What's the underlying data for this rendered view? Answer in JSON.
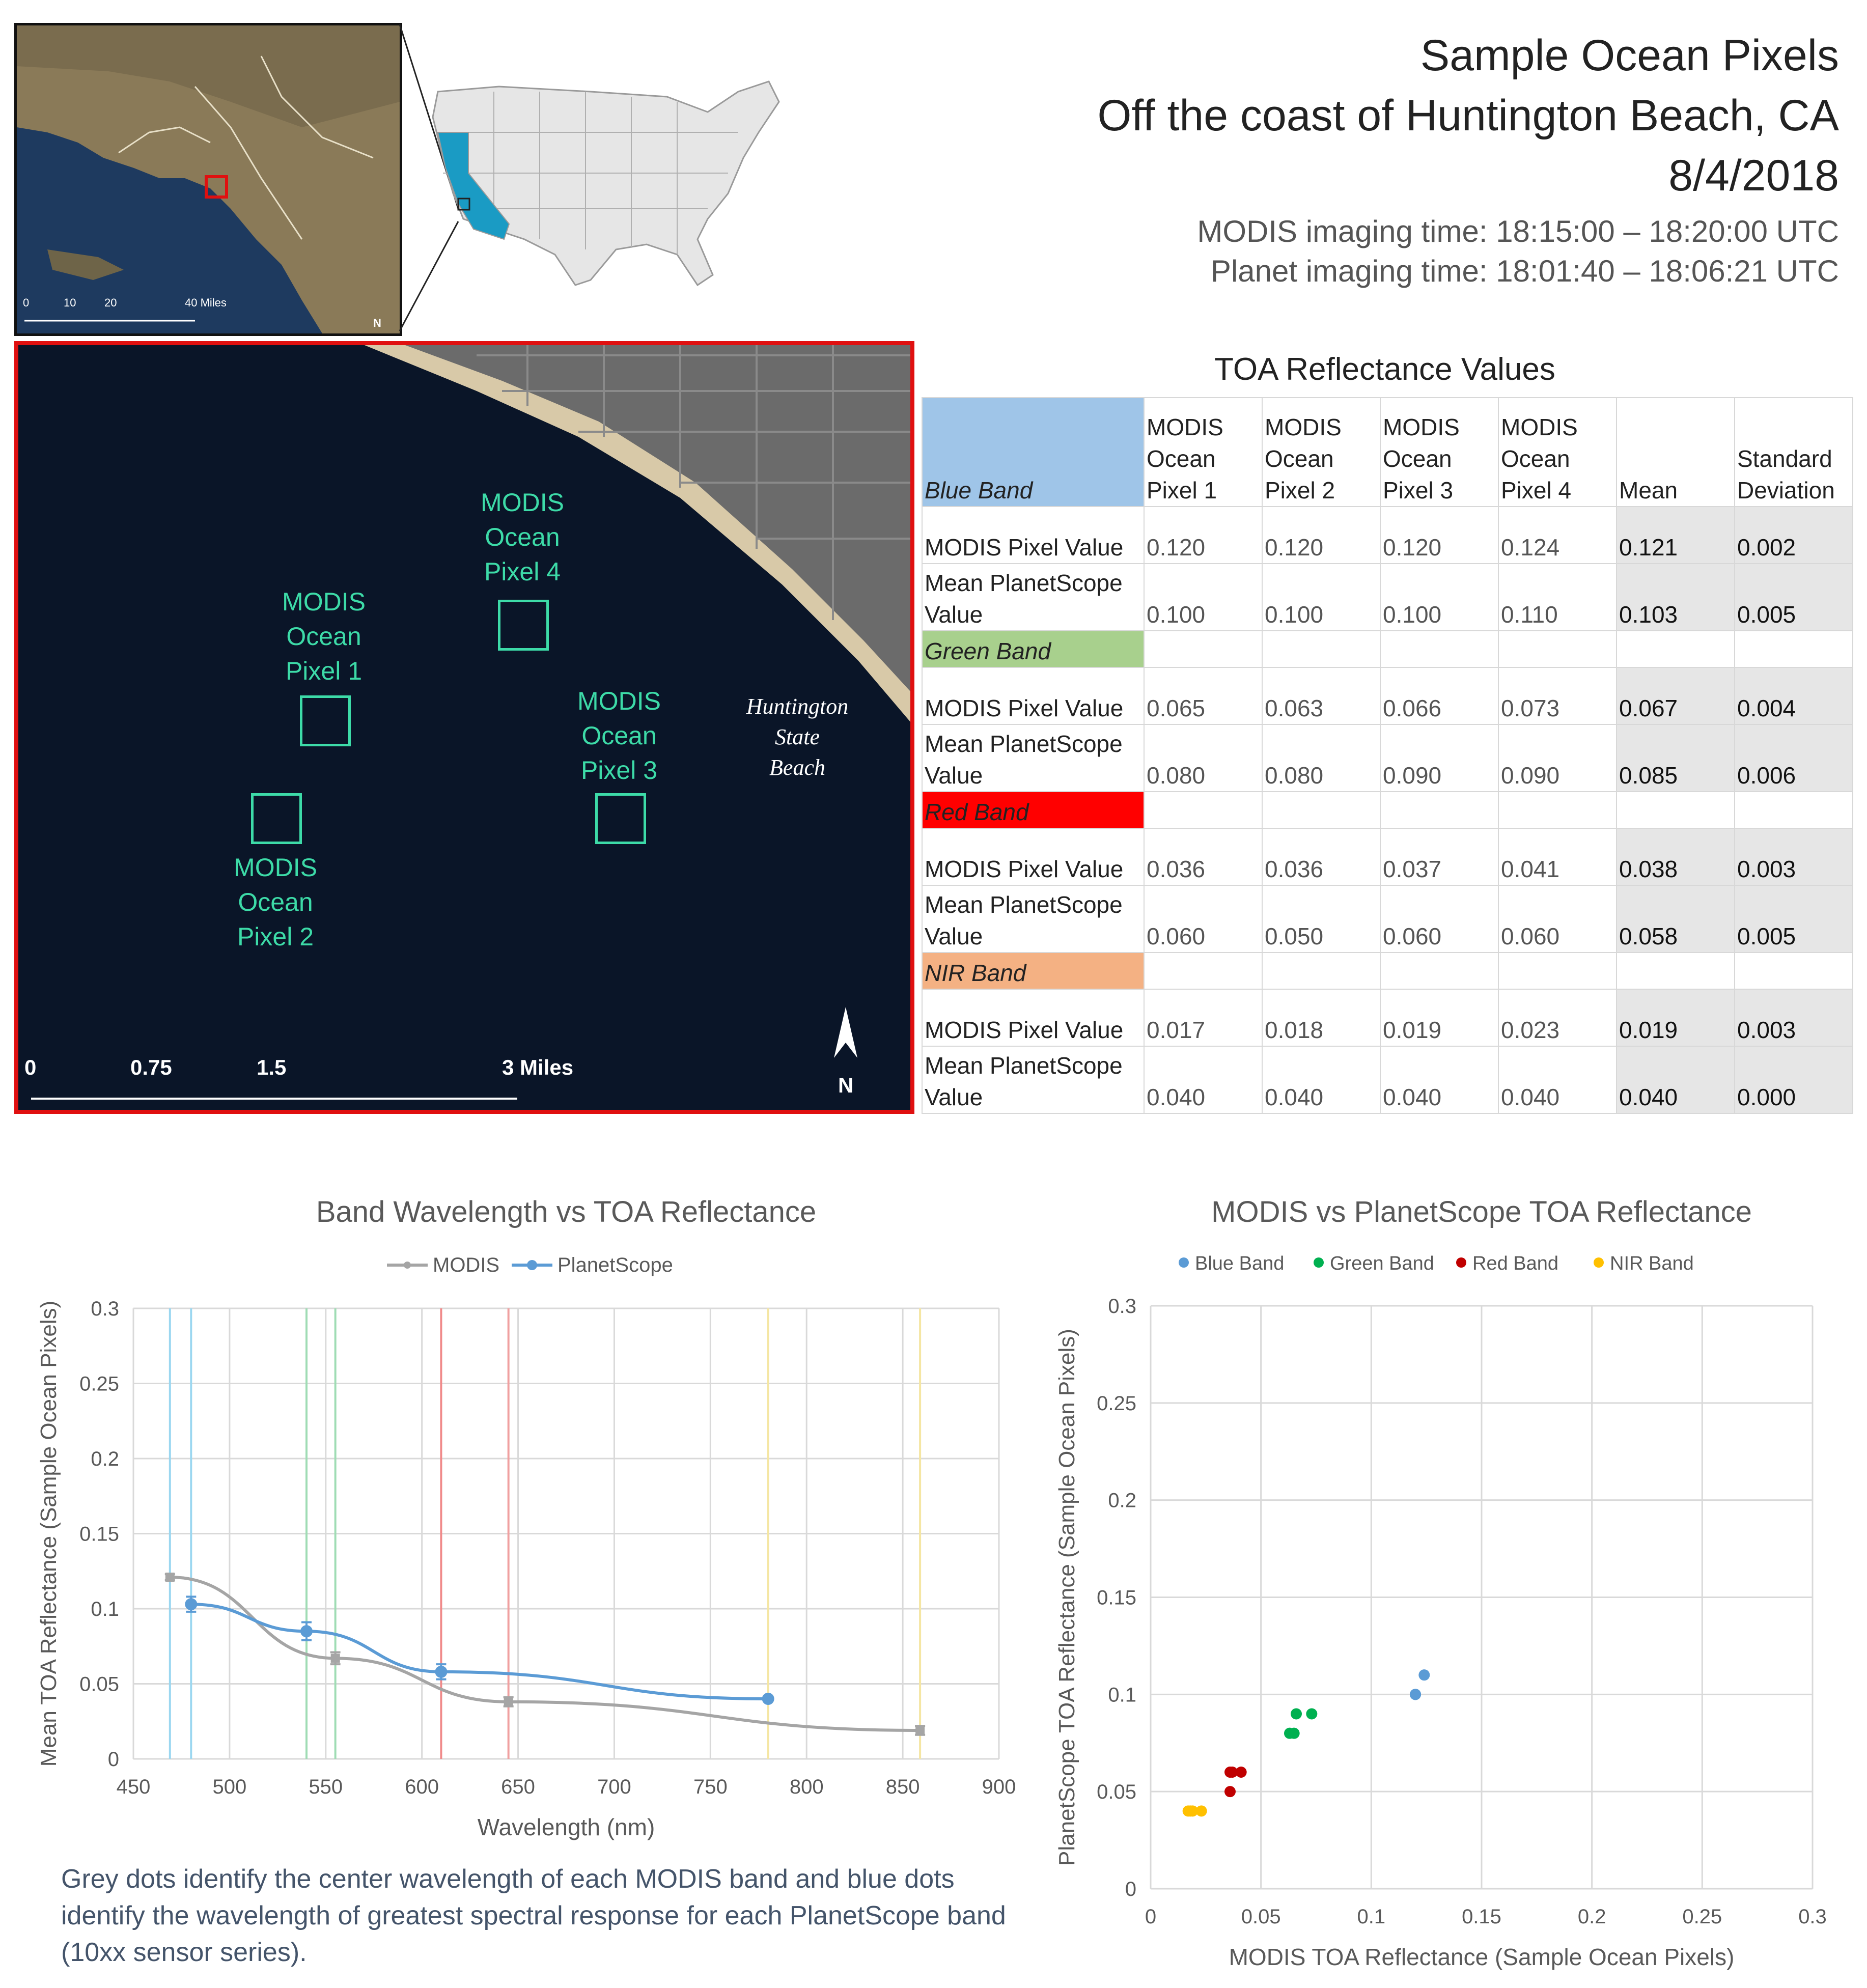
{
  "header": {
    "title_line1": "Sample Ocean Pixels",
    "title_line2": "Off the coast of Huntington Beach, CA",
    "date": "8/4/2018",
    "modis_time": "MODIS imaging time: 18:15:00 – 18:20:00 UTC",
    "planet_time": "Planet imaging time: 18:01:40 – 18:06:21 UTC"
  },
  "inset_map": {
    "scale_labels": [
      "0",
      "10",
      "20",
      "40 Miles"
    ],
    "north": "N",
    "colors": {
      "land": "#8a7a58",
      "ocean": "#1e3a5f",
      "highlight": "#e01010"
    }
  },
  "us_map": {
    "colors": {
      "states": "#e6e6e6",
      "california": "#1a9bc4",
      "border": "#9a9a9a"
    }
  },
  "main_map": {
    "pixels": [
      {
        "label": [
          "MODIS",
          "Ocean",
          "Pixel 1"
        ]
      },
      {
        "label": [
          "MODIS",
          "Ocean",
          "Pixel 2"
        ]
      },
      {
        "label": [
          "MODIS",
          "Ocean",
          "Pixel 3"
        ]
      },
      {
        "label": [
          "MODIS",
          "Ocean",
          "Pixel 4"
        ]
      }
    ],
    "beach_label": [
      "Huntington",
      "State",
      "Beach"
    ],
    "scale_labels": [
      "0",
      "0.75",
      "1.5",
      "3 Miles"
    ],
    "north": "N",
    "colors": {
      "ocean": "#0a1528",
      "box": "#3ddba8",
      "sand": "#d8c9a8",
      "city": "#6b6b6b"
    }
  },
  "table": {
    "title": "TOA Reflectance Values",
    "headers": [
      "MODIS Ocean Pixel 1",
      "MODIS Ocean Pixel 2",
      "MODIS Ocean Pixel 3",
      "MODIS Ocean Pixel 4",
      "Mean",
      "Standard Deviation"
    ],
    "bands": [
      {
        "name": "Blue Band",
        "color": "#9fc5e8",
        "rows": [
          {
            "label": "MODIS Pixel Value",
            "values": [
              "0.120",
              "0.120",
              "0.120",
              "0.124"
            ],
            "mean": "0.121",
            "sd": "0.002"
          },
          {
            "label": "Mean PlanetScope Value",
            "values": [
              "0.100",
              "0.100",
              "0.100",
              "0.110"
            ],
            "mean": "0.103",
            "sd": "0.005"
          }
        ]
      },
      {
        "name": "Green Band",
        "color": "#a8d08d",
        "rows": [
          {
            "label": "MODIS Pixel Value",
            "values": [
              "0.065",
              "0.063",
              "0.066",
              "0.073"
            ],
            "mean": "0.067",
            "sd": "0.004"
          },
          {
            "label": "Mean PlanetScope Value",
            "values": [
              "0.080",
              "0.080",
              "0.090",
              "0.090"
            ],
            "mean": "0.085",
            "sd": "0.006"
          }
        ]
      },
      {
        "name": "Red Band",
        "color": "#ff0000",
        "rows": [
          {
            "label": "MODIS Pixel Value",
            "values": [
              "0.036",
              "0.036",
              "0.037",
              "0.041"
            ],
            "mean": "0.038",
            "sd": "0.003"
          },
          {
            "label": "Mean PlanetScope Value",
            "values": [
              "0.060",
              "0.050",
              "0.060",
              "0.060"
            ],
            "mean": "0.058",
            "sd": "0.005"
          }
        ]
      },
      {
        "name": "NIR Band",
        "color": "#f4b183",
        "rows": [
          {
            "label": "MODIS Pixel Value",
            "values": [
              "0.017",
              "0.018",
              "0.019",
              "0.023"
            ],
            "mean": "0.019",
            "sd": "0.003"
          },
          {
            "label": "Mean PlanetScope Value",
            "values": [
              "0.040",
              "0.040",
              "0.040",
              "0.040"
            ],
            "mean": "0.040",
            "sd": "0.000"
          }
        ]
      }
    ]
  },
  "chart_data": [
    {
      "type": "line",
      "title": "Band Wavelength vs TOA Reflectance",
      "xlabel": "Wavelength (nm)",
      "ylabel": "Mean TOA Reflectance (Sample Ocean Pixels)",
      "xlim": [
        450,
        900
      ],
      "ylim": [
        0,
        0.3
      ],
      "xticks": [
        "450",
        "500",
        "550",
        "600",
        "650",
        "700",
        "750",
        "800",
        "850",
        "900"
      ],
      "yticks": [
        "0",
        "0.05",
        "0.1",
        "0.15",
        "0.2",
        "0.25",
        "0.3"
      ],
      "legend_position": "top",
      "grid": true,
      "series": [
        {
          "name": "MODIS",
          "color": "#a5a5a5",
          "x": [
            469,
            555,
            645,
            859
          ],
          "y": [
            0.121,
            0.067,
            0.038,
            0.019
          ],
          "err": [
            0.002,
            0.004,
            0.003,
            0.003
          ]
        },
        {
          "name": "PlanetScope",
          "color": "#5b9bd5",
          "x": [
            480,
            540,
            610,
            780
          ],
          "y": [
            0.103,
            0.085,
            0.058,
            0.04
          ],
          "err": [
            0.005,
            0.006,
            0.005,
            0.0
          ]
        }
      ],
      "vlines": [
        {
          "x": 469,
          "color": "#9bd7f0"
        },
        {
          "x": 480,
          "color": "#9bd7f0"
        },
        {
          "x": 540,
          "color": "#9fdcb4"
        },
        {
          "x": 555,
          "color": "#9fdcb4"
        },
        {
          "x": 610,
          "color": "#f08a8a"
        },
        {
          "x": 645,
          "color": "#f0a0a0"
        },
        {
          "x": 780,
          "color": "#f5e6a3"
        },
        {
          "x": 859,
          "color": "#f5e6a3"
        }
      ]
    },
    {
      "type": "scatter",
      "title": "MODIS vs PlanetScope TOA Reflectance",
      "xlabel": "MODIS TOA Reflectance (Sample Ocean Pixels)",
      "ylabel": "PlanetScope TOA Reflectance (Sample Ocean Pixels)",
      "xlim": [
        0,
        0.3
      ],
      "ylim": [
        0,
        0.3
      ],
      "xticks": [
        "0",
        "0.05",
        "0.1",
        "0.15",
        "0.2",
        "0.25",
        "0.3"
      ],
      "yticks": [
        "0",
        "0.05",
        "0.1",
        "0.15",
        "0.2",
        "0.25",
        "0.3"
      ],
      "legend_position": "top",
      "grid": true,
      "series": [
        {
          "name": "Blue Band",
          "color": "#5b9bd5",
          "x": [
            0.12,
            0.12,
            0.12,
            0.124
          ],
          "y": [
            0.1,
            0.1,
            0.1,
            0.11
          ]
        },
        {
          "name": "Green Band",
          "color": "#00b050",
          "x": [
            0.065,
            0.063,
            0.066,
            0.073
          ],
          "y": [
            0.08,
            0.08,
            0.09,
            0.09
          ]
        },
        {
          "name": "Red Band",
          "color": "#c00000",
          "x": [
            0.036,
            0.036,
            0.037,
            0.041
          ],
          "y": [
            0.06,
            0.05,
            0.06,
            0.06
          ]
        },
        {
          "name": "NIR Band",
          "color": "#ffc000",
          "x": [
            0.017,
            0.018,
            0.019,
            0.023
          ],
          "y": [
            0.04,
            0.04,
            0.04,
            0.04
          ]
        }
      ]
    }
  ],
  "caption": "Grey dots identify the center wavelength of each MODIS band and blue dots identify the wavelength of greatest spectral response for each PlanetScope band (10xx sensor series)."
}
